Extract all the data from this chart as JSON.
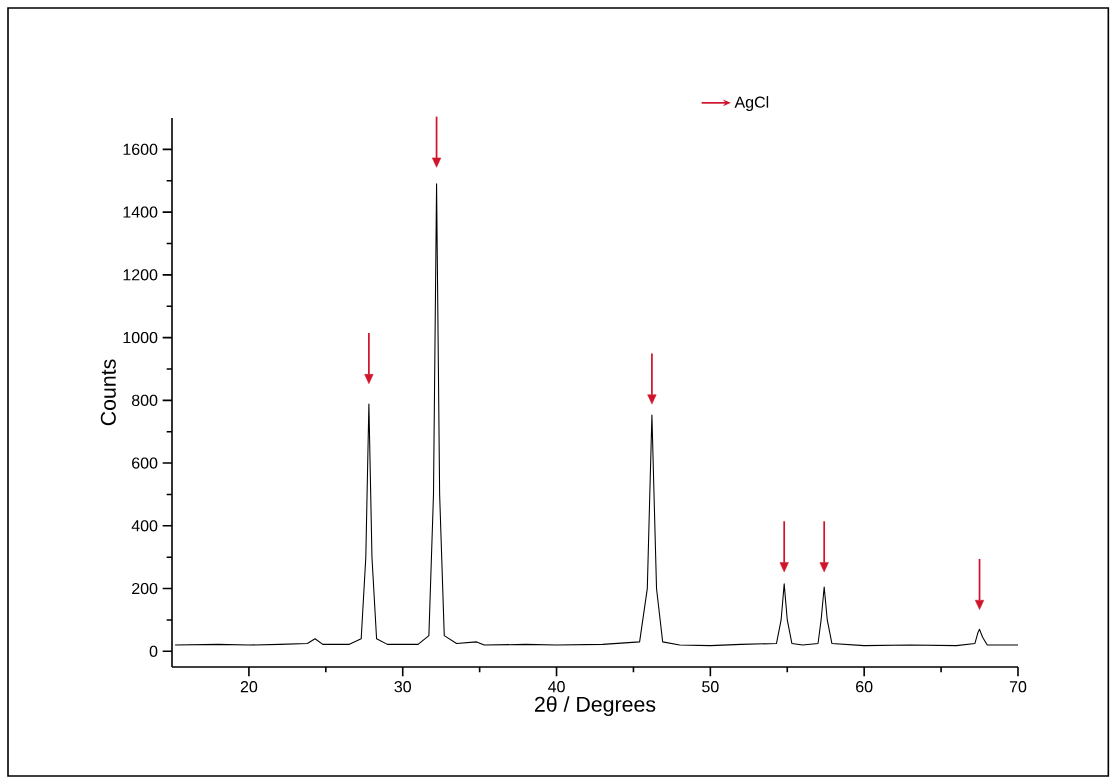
{
  "chart_data": {
    "type": "line",
    "xlabel": "2θ / Degrees",
    "ylabel": "Counts",
    "xlim": [
      15,
      70
    ],
    "ylim": [
      -50,
      1700
    ],
    "xticks": [
      20,
      30,
      40,
      50,
      60,
      70
    ],
    "yticks": [
      0,
      200,
      400,
      600,
      800,
      1000,
      1200,
      1400,
      1600
    ],
    "grid": false,
    "legend": "top",
    "marker": "none",
    "line_style": "solid",
    "series": [
      {
        "color": "#000000",
        "x": [
          15.2,
          18,
          20,
          22,
          23.8,
          24.3,
          24.8,
          26.5,
          27.3,
          27.6,
          27.8,
          28.0,
          28.3,
          29,
          31.0,
          31.7,
          32.0,
          32.2,
          32.4,
          32.7,
          33.5,
          34.8,
          35.3,
          38,
          40,
          43,
          45.4,
          45.9,
          46.2,
          46.5,
          46.9,
          48,
          50,
          52,
          54.3,
          54.6,
          54.8,
          55.0,
          55.3,
          56,
          57.0,
          57.2,
          57.4,
          57.6,
          57.9,
          60,
          63,
          66,
          67.2,
          67.4,
          67.5,
          67.7,
          68.0,
          70
        ],
        "values": [
          20,
          22,
          20,
          22,
          25,
          40,
          22,
          22,
          40,
          300,
          788,
          300,
          40,
          22,
          22,
          50,
          500,
          1490,
          500,
          50,
          25,
          30,
          20,
          22,
          20,
          22,
          30,
          200,
          753,
          200,
          30,
          20,
          18,
          22,
          25,
          100,
          215,
          100,
          25,
          20,
          25,
          100,
          205,
          100,
          25,
          18,
          20,
          18,
          25,
          60,
          70,
          45,
          20,
          20
        ]
      },
      {
        "type": "scatter",
        "name": "AgCl",
        "color": "#d0142c",
        "marker": "triangle",
        "x": [
          27.8,
          32.2,
          46.2,
          54.8,
          57.4,
          67.5
        ],
        "values": [
          870,
          1560,
          805,
          270,
          270,
          150
        ]
      }
    ]
  }
}
